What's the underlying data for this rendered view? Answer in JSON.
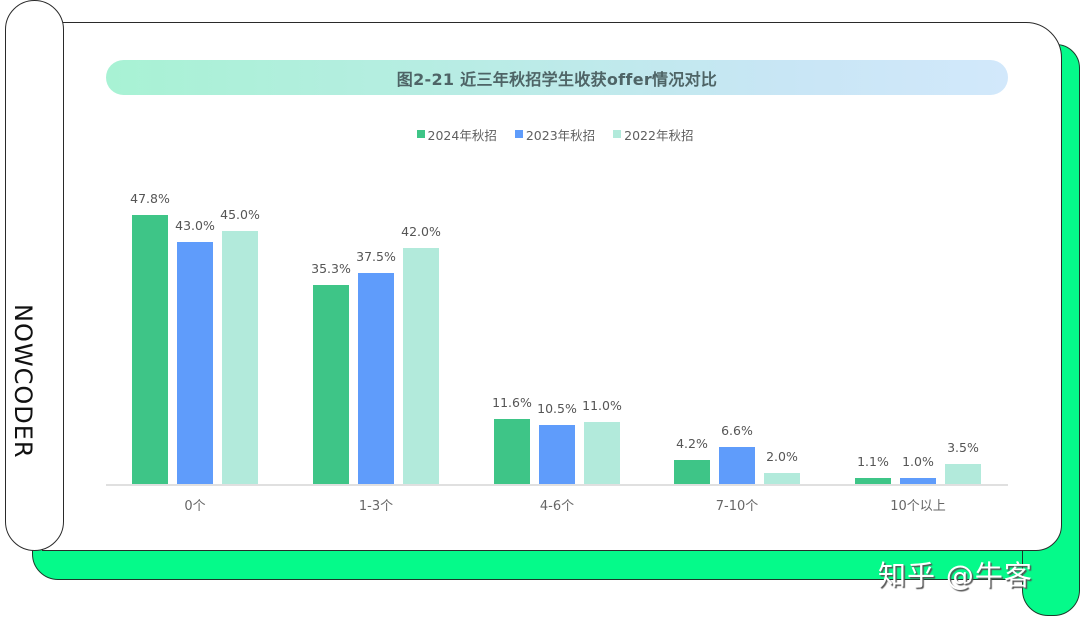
{
  "brand": {
    "vertical_text": "NOWCODER",
    "watermark": "知乎 @牛客"
  },
  "colors": {
    "series_2024": "#3ec587",
    "series_2023": "#5f9cfb",
    "series_2022": "#b2eadb",
    "frame_green": "#05fa8a"
  },
  "chart_data": {
    "type": "bar",
    "title": "图2-21 近三年秋招学生收获offer情况对比",
    "xlabel": "",
    "ylabel": "",
    "categories": [
      "0个",
      "1-3个",
      "4-6个",
      "7-10个",
      "10个以上"
    ],
    "series": [
      {
        "name": "2024年秋招",
        "values": [
          47.8,
          35.3,
          11.6,
          4.2,
          1.1
        ],
        "labels": [
          "47.8%",
          "35.3%",
          "11.6%",
          "4.2%",
          "1.1%"
        ]
      },
      {
        "name": "2023年秋招",
        "values": [
          43.0,
          37.5,
          10.5,
          6.6,
          1.0
        ],
        "labels": [
          "43.0%",
          "37.5%",
          "10.5%",
          "6.6%",
          "1.0%"
        ]
      },
      {
        "name": "2022年秋招",
        "values": [
          45.0,
          42.0,
          11.0,
          2.0,
          3.5
        ],
        "labels": [
          "45.0%",
          "42.0%",
          "11.0%",
          "2.0%",
          "3.5%"
        ]
      }
    ],
    "ylim": [
      0,
      50
    ],
    "grid": false,
    "legend_position": "top-center",
    "data_labels": true
  }
}
